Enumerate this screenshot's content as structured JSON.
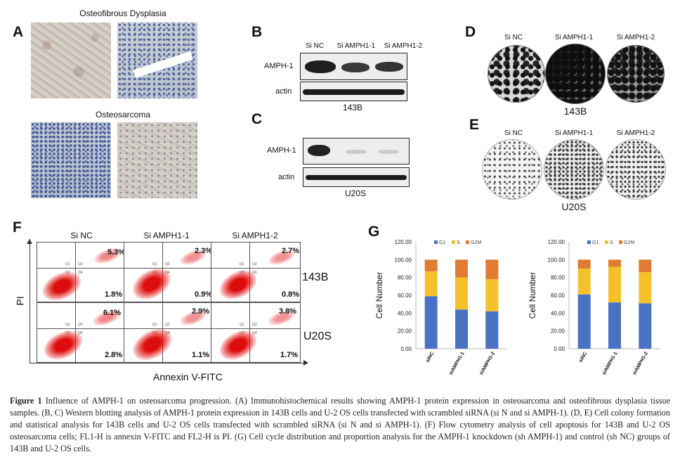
{
  "panel_letters": {
    "A": "A",
    "B": "B",
    "C": "C",
    "D": "D",
    "E": "E",
    "F": "F",
    "G": "G"
  },
  "panelA": {
    "title_top": "Osteofibrous Dysplasia",
    "title_bottom": "Osteosarcoma"
  },
  "panelB": {
    "lanes": [
      "Si NC",
      "Si AMPH1-1",
      "Si AMPH1-2"
    ],
    "rows": [
      "AMPH-1",
      "actin"
    ],
    "cell_line": "143B"
  },
  "panelC": {
    "rows": [
      "AMPH-1",
      "actin"
    ],
    "cell_line": "U20S"
  },
  "panelD": {
    "lanes": [
      "Si NC",
      "Si AMPH1-1",
      "Si AMPH1-2"
    ],
    "cell_line": "143B"
  },
  "panelE": {
    "lanes": [
      "Si NC",
      "Si AMPH1-1",
      "Si AMPH1-2"
    ],
    "cell_line": "U20S"
  },
  "panelF": {
    "columns": [
      "Si NC",
      "Si AMPH1-1",
      "Si AMPH1-2"
    ],
    "rows": [
      "143B",
      "U20S"
    ],
    "ylabel": "PI",
    "xlabel": "Annexin V-FITC",
    "quad_labels": [
      "Q1",
      "Q2",
      "Q3",
      "Q4"
    ],
    "upper_pct": [
      [
        "5.3%",
        "2.3%",
        "2.7%"
      ],
      [
        "6.1%",
        "2.9%",
        "3.8%"
      ]
    ],
    "lower_pct": [
      [
        "1.8%",
        "0.9%",
        "0.8%"
      ],
      [
        "2.8%",
        "1.1%",
        "1.7%"
      ]
    ]
  },
  "chart_data": [
    {
      "type": "bar",
      "stacked": true,
      "categories": [
        "siNC",
        "siAMPH1-1",
        "siAMPH1-2"
      ],
      "series": [
        {
          "name": "G1",
          "values": [
            59,
            44,
            42
          ],
          "color": "#4a72c4"
        },
        {
          "name": "S",
          "values": [
            28,
            36,
            36
          ],
          "color": "#f5c12b"
        },
        {
          "name": "G2M",
          "values": [
            13,
            20,
            22
          ],
          "color": "#e07b32"
        }
      ],
      "ylabel": "Cell Number",
      "ylim": [
        0,
        120
      ],
      "yticks": [
        "0.00",
        "20.00",
        "40.00",
        "60.00",
        "80.00",
        "100.00",
        "120.00"
      ],
      "legend": "top",
      "grid": false
    },
    {
      "type": "bar",
      "stacked": true,
      "categories": [
        "siNC",
        "siAMPH1-1",
        "siAMPH1-2"
      ],
      "series": [
        {
          "name": "G1",
          "values": [
            61,
            52,
            51
          ],
          "color": "#4a72c4"
        },
        {
          "name": "S",
          "values": [
            29,
            40,
            35
          ],
          "color": "#f5c12b"
        },
        {
          "name": "G2M",
          "values": [
            10,
            8,
            14
          ],
          "color": "#e07b32"
        }
      ],
      "ylabel": "Cell Number",
      "ylim": [
        0,
        120
      ],
      "yticks": [
        "0.00",
        "20.00",
        "40.00",
        "60.00",
        "80.00",
        "100.00",
        "120.00"
      ],
      "legend": "top",
      "grid": false
    }
  ],
  "caption": {
    "lead": "Figure 1",
    "text": " Influence of AMPH-1 on osteosarcoma progression. (A) Immunohistochemical results showing AMPH-1 protein expression in osteosarcoma and osteofibrous dysplasia tissue samples. (B, C) Western blotting analysis of AMPH-1 protein expression in 143B cells and U-2 OS cells transfected with scrambled siRNA (si N and si AMPH-1). (D, E) Cell colony formation and statistical analysis for 143B cells and U-2 OS cells transfected with scrambled siRNA (si N and si AMPH-1). (F) Flow cytometry analysis of cell apoptosis for 143B and U-2 OS osteosarcoma cells; FL1-H is annexin V-FITC and FL2-H is PI. (G) Cell cycle distribution and proportion analysis for the AMPH-1 knockdown (sh AMPH-1) and control (sh NC) groups of 143B and U-2 OS cells."
  }
}
